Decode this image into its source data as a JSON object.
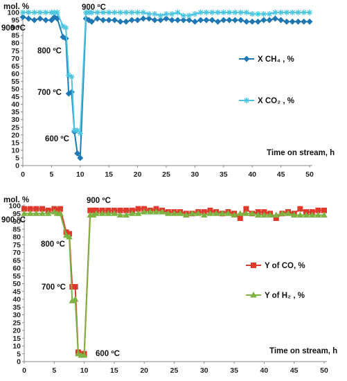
{
  "chart_data": [
    {
      "type": "line",
      "ylabel": "mol. %",
      "xlabel": "Time on stream, h",
      "xlim": [
        0,
        50
      ],
      "ylim": [
        0,
        100
      ],
      "xticks": [
        "0",
        "5",
        "10",
        "15",
        "20",
        "25",
        "30",
        "35",
        "40",
        "45",
        "50"
      ],
      "yticks": [
        "0",
        "5",
        "10",
        "15",
        "20",
        "25",
        "30",
        "35",
        "40",
        "45",
        "50",
        "55",
        "60",
        "65",
        "70",
        "75",
        "80",
        "85",
        "90",
        "95",
        "100"
      ],
      "annotations": [
        "900 ºC",
        "800 ºC",
        "700 ºC",
        "600 ºC",
        "900 ºC"
      ],
      "legend_position": "right",
      "series": [
        {
          "name": "X CH₄ , %",
          "color": "#1f78b4",
          "marker": "diamond",
          "x": [
            0,
            1,
            2,
            3,
            4,
            5,
            5.5,
            6,
            7,
            7.5,
            8,
            8.5,
            9,
            9.5,
            10,
            11,
            11.5,
            12,
            13,
            14,
            15,
            16,
            17,
            18,
            19,
            20,
            21,
            22,
            23,
            24,
            25,
            26,
            27,
            28,
            29,
            30,
            31,
            32,
            33,
            34,
            35,
            36,
            37,
            38,
            39,
            40,
            41,
            42,
            43,
            44,
            45,
            46,
            47,
            48,
            49,
            50
          ],
          "y": [
            97,
            96,
            95,
            96,
            95,
            95,
            97,
            96,
            84,
            83,
            47,
            48,
            22,
            8,
            5,
            96,
            95,
            94,
            96,
            95,
            95,
            95,
            94,
            94,
            95,
            95,
            96,
            96,
            95,
            95,
            96,
            95,
            95,
            95,
            95,
            94,
            95,
            95,
            95,
            94,
            95,
            95,
            95,
            95,
            94,
            94,
            94,
            95,
            95,
            96,
            95,
            94,
            94,
            94,
            94,
            94
          ]
        },
        {
          "name": "X CO₂ , %",
          "color": "#4bc6e0",
          "marker": "star",
          "x": [
            0,
            1,
            2,
            3,
            4,
            5,
            5.5,
            6,
            7,
            7.5,
            8,
            8.5,
            9,
            9.5,
            10,
            11,
            11.5,
            12,
            13,
            14,
            15,
            16,
            17,
            18,
            19,
            20,
            21,
            22,
            23,
            24,
            25,
            26,
            27,
            28,
            29,
            30,
            31,
            32,
            33,
            34,
            35,
            36,
            37,
            38,
            39,
            40,
            41,
            42,
            43,
            44,
            45,
            46,
            47,
            48,
            49,
            50
          ],
          "y": [
            100,
            100,
            100,
            100,
            100,
            100,
            100,
            100,
            91,
            90,
            59,
            58,
            23,
            23,
            21,
            100,
            100,
            100,
            100,
            100,
            100,
            100,
            100,
            100,
            100,
            100,
            100,
            99,
            99,
            98,
            99,
            99,
            100,
            98,
            98,
            99,
            100,
            100,
            100,
            100,
            100,
            100,
            100,
            100,
            100,
            99,
            99,
            99,
            99,
            100,
            100,
            100,
            100,
            100,
            100,
            100
          ]
        }
      ]
    },
    {
      "type": "line",
      "ylabel": "mol. %",
      "xlabel": "Time on stream, h",
      "xlim": [
        0,
        50
      ],
      "ylim": [
        0,
        100
      ],
      "xticks": [
        "0",
        "5",
        "10",
        "15",
        "20",
        "25",
        "30",
        "35",
        "40",
        "45",
        "50"
      ],
      "yticks": [
        "0",
        "5",
        "10",
        "15",
        "20",
        "25",
        "30",
        "35",
        "40",
        "45",
        "50",
        "55",
        "60",
        "65",
        "70",
        "75",
        "80",
        "85",
        "90",
        "95",
        "100"
      ],
      "annotations": [
        "900 ºC",
        "800 ºC",
        "700 ºC",
        "600 ºC",
        "900 ºC"
      ],
      "legend_position": "right",
      "series": [
        {
          "name": "Y of CO, %",
          "color": "#e0392b",
          "marker": "square",
          "x": [
            0,
            1,
            2,
            3,
            4,
            5,
            5.5,
            6,
            7,
            7.5,
            8,
            8.5,
            9,
            9.5,
            10,
            11,
            11.5,
            12,
            13,
            14,
            15,
            16,
            17,
            18,
            19,
            20,
            21,
            22,
            23,
            24,
            25,
            26,
            27,
            28,
            29,
            30,
            31,
            32,
            33,
            34,
            35,
            36,
            37,
            38,
            39,
            40,
            41,
            42,
            43,
            44,
            45,
            46,
            47,
            48,
            49,
            50
          ],
          "y": [
            98,
            98,
            98,
            98,
            97,
            98,
            97,
            98,
            83,
            82,
            48,
            48,
            6,
            5,
            5,
            97,
            97,
            97,
            97,
            97,
            97,
            97,
            97,
            97,
            98,
            98,
            97,
            98,
            97,
            96,
            96,
            96,
            95,
            95,
            96,
            96,
            97,
            96,
            95,
            96,
            95,
            92,
            98,
            95,
            96,
            96,
            95,
            92,
            95,
            96,
            95,
            98,
            96,
            96,
            97,
            97
          ]
        },
        {
          "name": "Y of H₂ , %",
          "color": "#7cb342",
          "marker": "triangle",
          "x": [
            0,
            1,
            2,
            3,
            4,
            5,
            5.5,
            6,
            7,
            7.5,
            8,
            8.5,
            9,
            9.5,
            10,
            11,
            11.5,
            12,
            13,
            14,
            15,
            16,
            17,
            18,
            19,
            20,
            21,
            22,
            23,
            24,
            25,
            26,
            27,
            28,
            29,
            30,
            31,
            32,
            33,
            34,
            35,
            36,
            37,
            38,
            39,
            40,
            41,
            42,
            43,
            44,
            45,
            46,
            47,
            48,
            49,
            50
          ],
          "y": [
            95,
            95,
            95,
            95,
            95,
            96,
            95,
            95,
            81,
            80,
            39,
            40,
            5,
            4,
            4,
            94,
            94,
            95,
            95,
            95,
            95,
            94,
            94,
            95,
            95,
            96,
            96,
            96,
            96,
            95,
            95,
            95,
            94,
            95,
            95,
            94,
            95,
            95,
            95,
            95,
            94,
            95,
            95,
            95,
            94,
            94,
            94,
            94,
            95,
            95,
            94,
            94,
            94,
            94,
            94,
            94
          ]
        }
      ]
    }
  ]
}
